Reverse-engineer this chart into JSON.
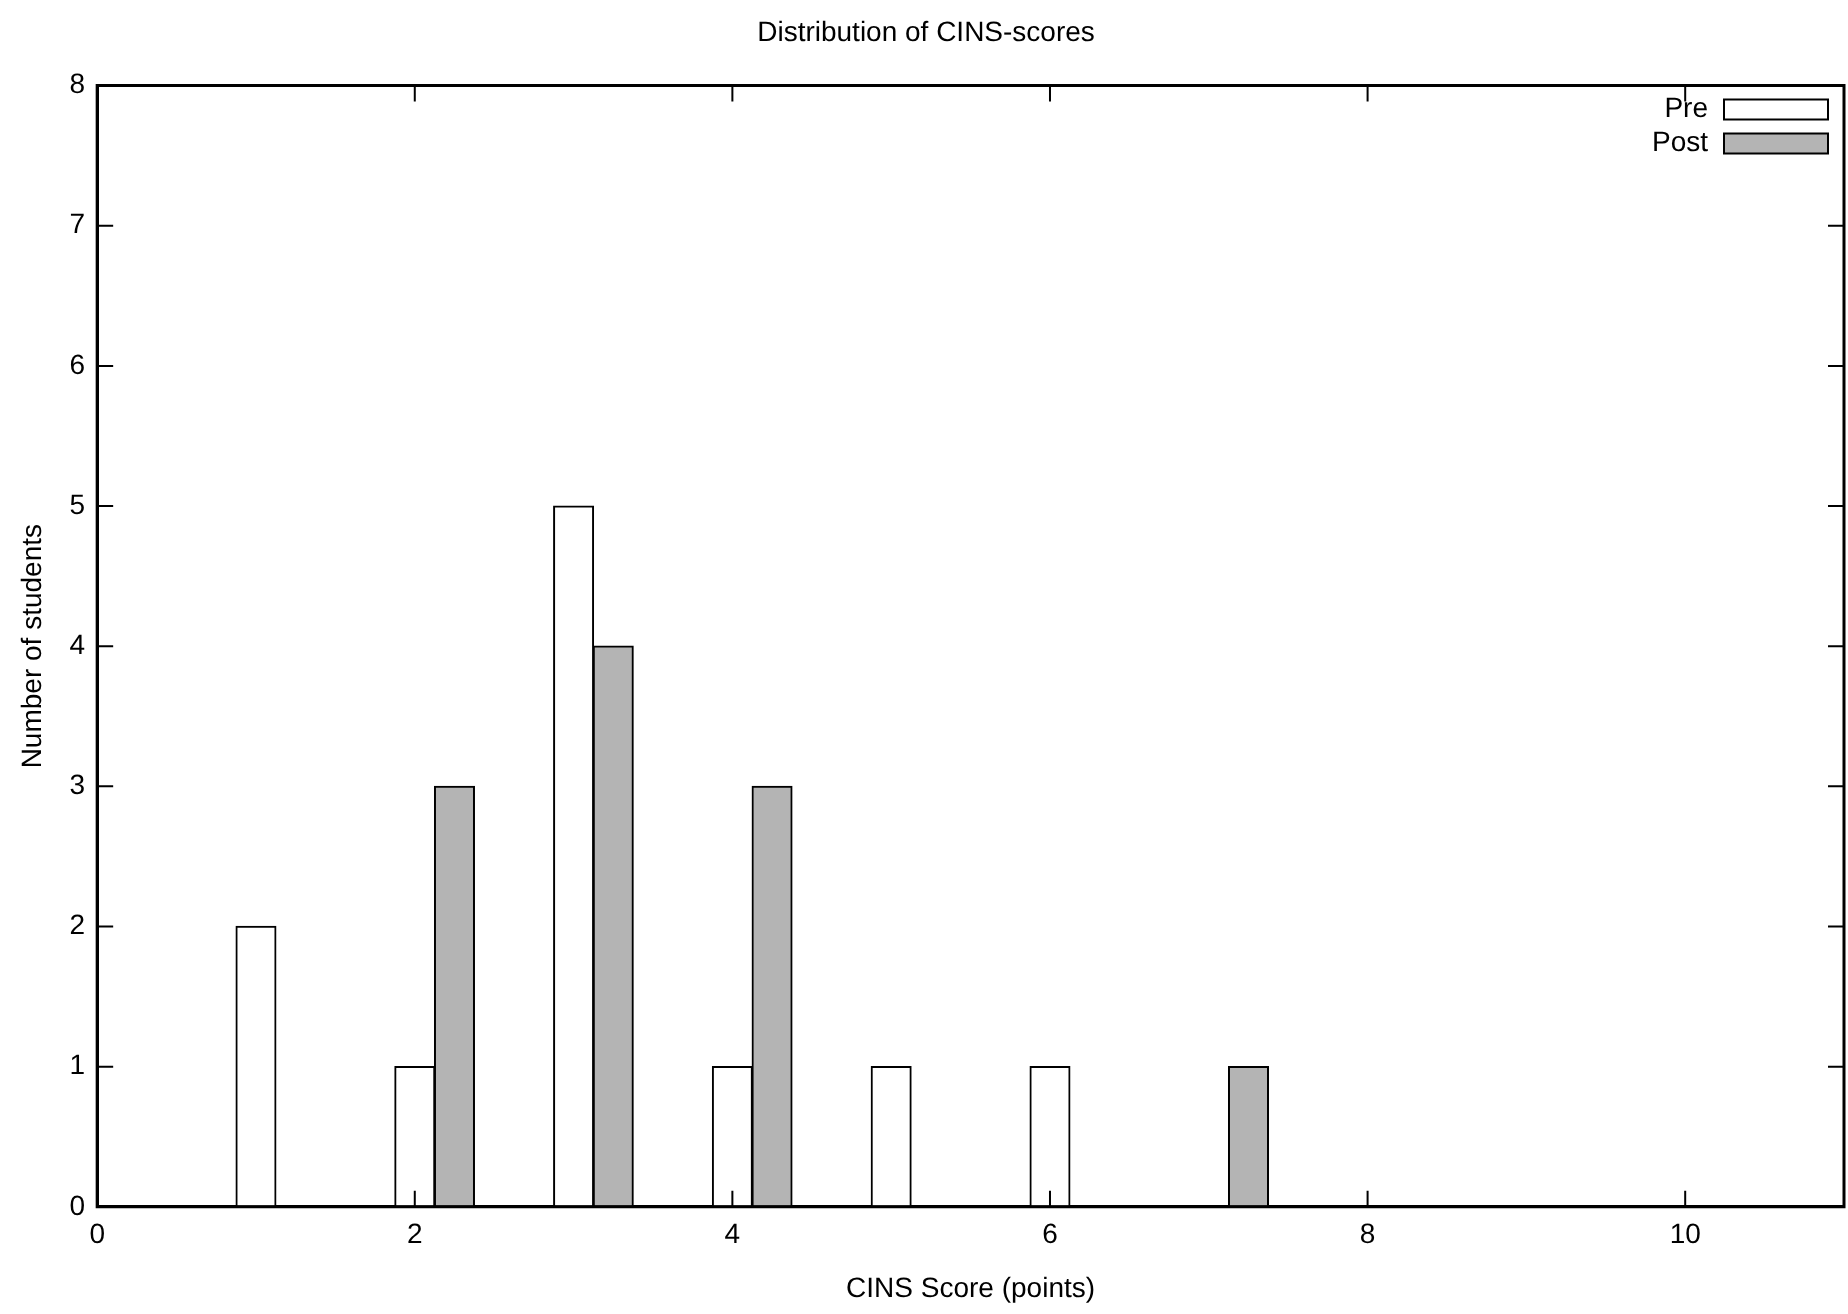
{
  "chart_data": {
    "type": "bar",
    "title": "Distribution of CINS-scores",
    "xlabel": "CINS Score (points)",
    "ylabel": "Number of students",
    "xlim": [
      0,
      11
    ],
    "xticks": [
      0,
      2,
      4,
      6,
      8,
      10
    ],
    "ylim": [
      0,
      8
    ],
    "yticks": [
      0,
      1,
      2,
      3,
      4,
      5,
      6,
      7,
      8
    ],
    "grid": false,
    "legend": "top right",
    "series": [
      {
        "name": "Pre",
        "color": "#ffffff",
        "x": [
          1,
          2,
          3,
          4,
          5,
          6
        ],
        "values": [
          2,
          1,
          5,
          1,
          1,
          1
        ]
      },
      {
        "name": "Post",
        "color": "#b4b4b4",
        "x": [
          2.25,
          3.25,
          4.25,
          7.25
        ],
        "values": [
          3,
          4,
          3,
          1
        ]
      }
    ]
  }
}
